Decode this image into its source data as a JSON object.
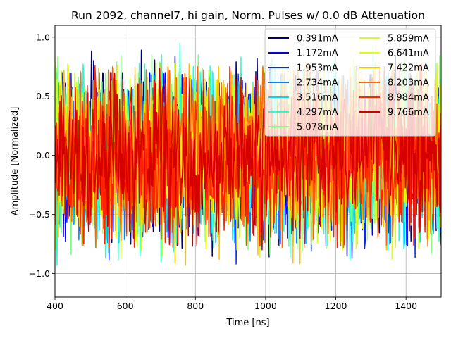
{
  "chart_data": {
    "type": "line",
    "title": "Run 2092, channel7, hi gain, Norm. Pulses w/ 0.0 dB Attenuation",
    "xlabel": "Time [ns]",
    "ylabel": "Amplitude [Normalized]",
    "xlim": [
      400,
      1500
    ],
    "ylim": [
      -1.2,
      1.1
    ],
    "x_ticks": [
      400,
      600,
      800,
      1000,
      1200,
      1400
    ],
    "y_ticks": [
      -1.0,
      -0.5,
      0.0,
      0.5,
      1.0
    ],
    "x_tick_labels": [
      "400",
      "600",
      "800",
      "1000",
      "1200",
      "1400"
    ],
    "y_tick_labels": [
      "−1.0",
      "−0.5",
      "0.0",
      "0.5",
      "1.0"
    ],
    "grid": true,
    "legend_position": "top-right",
    "legend_columns": 2,
    "sample_step_ns": 2,
    "series": [
      {
        "name": "0.391mA",
        "color": "#00007f",
        "amplitude": 0.32,
        "peak": 0.89,
        "trough": -0.86
      },
      {
        "name": "1.172mA",
        "color": "#0000e3",
        "amplitude": 0.32,
        "peak": 0.7,
        "trough": -0.76
      },
      {
        "name": "1.953mA",
        "color": "#0029ff",
        "amplitude": 0.32,
        "peak": 0.7,
        "trough": -0.92
      },
      {
        "name": "2.734mA",
        "color": "#0081ff",
        "amplitude": 0.32,
        "peak": 0.68,
        "trough": -0.74
      },
      {
        "name": "3.516mA",
        "color": "#00d5ff",
        "amplitude": 0.32,
        "peak": 0.7,
        "trough": -0.8
      },
      {
        "name": "4.297mA",
        "color": "#29ffce",
        "amplitude": 0.33,
        "peak": 0.95,
        "trough": -0.93
      },
      {
        "name": "5.078mA",
        "color": "#7dff7a",
        "amplitude": 0.33,
        "peak": 0.85,
        "trough": -0.84
      },
      {
        "name": "5.859mA",
        "color": "#ceff29",
        "amplitude": 0.33,
        "peak": 0.85,
        "trough": -0.88
      },
      {
        "name": "6.641mA",
        "color": "#e0ff00",
        "amplitude": 0.33,
        "peak": 0.78,
        "trough": -0.8
      },
      {
        "name": "7.422mA",
        "color": "#ffc400",
        "amplitude": 0.33,
        "peak": 0.78,
        "trough": -0.93
      },
      {
        "name": "8.203mA",
        "color": "#ff6800",
        "amplitude": 0.33,
        "peak": 0.75,
        "trough": -0.78
      },
      {
        "name": "8.984mA",
        "color": "#ff2300",
        "amplitude": 0.32,
        "peak": 0.78,
        "trough": -0.78
      },
      {
        "name": "9.766mA",
        "color": "#d50000",
        "amplitude": 0.3,
        "peak": 0.75,
        "trough": -0.8
      }
    ]
  }
}
